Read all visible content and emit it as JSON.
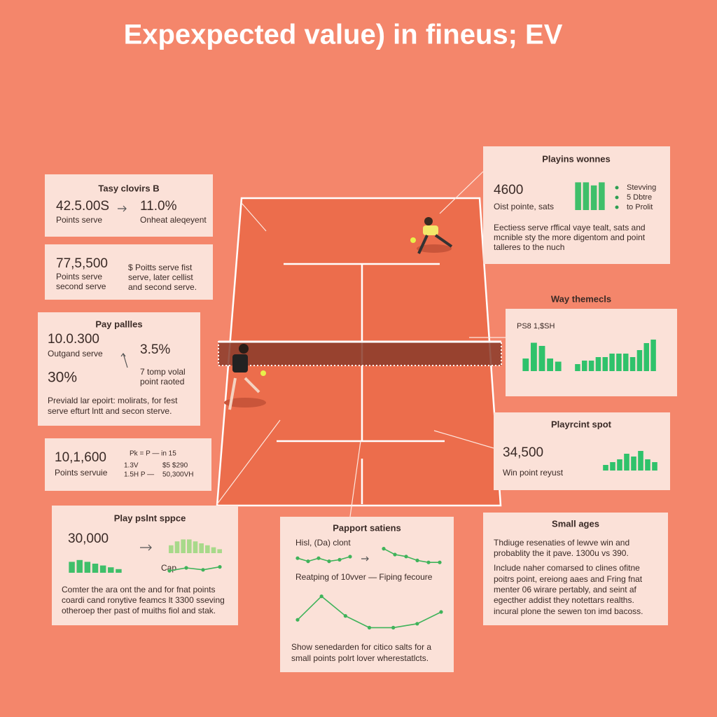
{
  "title": "Expexpected value) in fineus; EV",
  "panel1": {
    "title": "Tasy clovirs B",
    "value": "42.5.00S",
    "pct": "11.0%",
    "label": "Points serve",
    "note": "Onheat aleqeyent"
  },
  "panel2": {
    "value": "77,5,500",
    "label": [
      "Points serve",
      "second serve"
    ],
    "note": [
      "$ Poitts serve fist",
      "serve, later cellist",
      "and second serve."
    ]
  },
  "panel3": {
    "title": "Pay pallles",
    "value": "10.0.300",
    "label": "Outgand serve",
    "pct": "30%",
    "rate": "3.5%",
    "note": [
      "7 tomp volal",
      "point raoted"
    ],
    "text": [
      "Previald lar epoirt: molirats, for fest",
      "serve efturt lntt and secon sterve."
    ]
  },
  "panel4": {
    "value": "10,1,600",
    "label": "Points servuie",
    "formula": "Pk = P — in 15",
    "rows": [
      [
        "1.3V",
        "$5 $290"
      ],
      [
        "1.5H P —",
        "50,300VH"
      ]
    ]
  },
  "panel5": {
    "title": "Play pslnt sppce",
    "value": "30,000",
    "chart_label": "Cap",
    "text": [
      "Comter the ara ont the and for fnat points",
      "coardi cand ronytive feamcs lt 3300 sseving",
      "otheroep ther past of muiths fiol and stak."
    ]
  },
  "panel6": {
    "title": "Playins wonnes",
    "value": "4600",
    "label": "Oist pointe, sats",
    "legend": [
      "Stevving",
      "5 Dbtre",
      "to Prolit"
    ],
    "text": [
      "Eectiess serve rffical vaye tealt, sats and",
      "mcnible sty the more digentom and point",
      "talleres to the nuch"
    ]
  },
  "panel7": {
    "title": "Way themecls",
    "label": "PS8 1,$SH"
  },
  "panel8": {
    "title": "Playrcint spot",
    "value": "34,500",
    "label": "Win point reyust"
  },
  "panel9": {
    "title": "Papport satiens",
    "label": "Hisl, (Da) clont",
    "caption": "Reatping of 10vver — Fiping fecoure",
    "text": [
      "Show senedarden for citico salts for a",
      "small points polrt lover wherestatlcts."
    ]
  },
  "panel10": {
    "title": "Small ages",
    "text": [
      "Thdiuge resenaties of lewve win and",
      "probablity the it pave. 1300u vs 390.",
      "Include naher comarsed to clines ofitne",
      "poitrs point, ereiong aaes and Fring fnat",
      "menter 06 wirare pertably, and seint af",
      "egecther addist they notettars realths.",
      "incural plone the sewen ton imd bacoss."
    ]
  },
  "charts": [
    {
      "type": "bar",
      "values": [
        6,
        7,
        6,
        5,
        4,
        3,
        2
      ],
      "ylim": [
        0,
        10
      ],
      "color": "#3fbf6a"
    },
    {
      "type": "bar",
      "values": [
        4,
        6,
        7,
        7,
        6,
        5,
        4,
        3,
        2
      ],
      "ylim": [
        0,
        10
      ],
      "color": "#a8d98a"
    },
    {
      "type": "line",
      "values": [
        2,
        5,
        3,
        6
      ],
      "ylim": [
        0,
        10
      ],
      "color": "#3fb35a"
    },
    {
      "type": "bar",
      "values": [
        9,
        9,
        8,
        9
      ],
      "ylim": [
        0,
        10
      ],
      "color": "#3fbf6a"
    },
    {
      "type": "bar",
      "values": [
        4,
        9,
        8,
        4,
        3
      ],
      "ylim": [
        0,
        10
      ],
      "color": "#2fc26b"
    },
    {
      "type": "bar",
      "values": [
        2,
        3,
        3,
        4,
        4,
        5,
        5,
        5,
        4,
        6,
        8,
        9
      ],
      "ylim": [
        0,
        10
      ],
      "color": "#2fc26b"
    },
    {
      "type": "bar",
      "values": [
        2,
        3,
        4,
        6,
        5,
        7,
        4,
        3
      ],
      "ylim": [
        0,
        10
      ],
      "color": "#2fc26b"
    },
    {
      "type": "line",
      "values": [
        4,
        2,
        4,
        2,
        3,
        5
      ],
      "ylim": [
        0,
        10
      ],
      "color": "#3fb35a"
    },
    {
      "type": "line",
      "values": [
        8,
        5,
        4,
        2,
        1,
        1
      ],
      "ylim": [
        0,
        10
      ],
      "color": "#3fb35a"
    },
    {
      "type": "line",
      "values": [
        3,
        9,
        4,
        1,
        1,
        2,
        5
      ],
      "ylim": [
        0,
        10
      ],
      "color": "#3fb35a"
    }
  ]
}
